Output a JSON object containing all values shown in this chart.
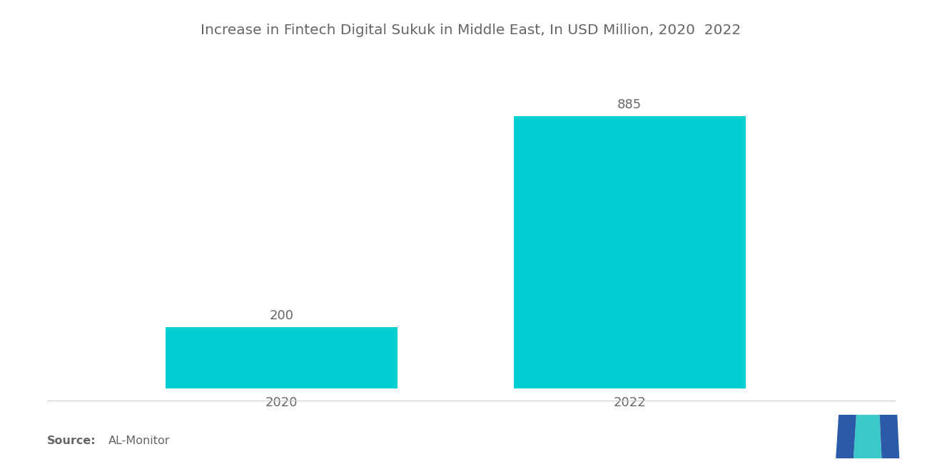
{
  "title": "Increase in Fintech Digital Sukuk in Middle East, In USD Million, 2020  2022",
  "categories": [
    "2020",
    "2022"
  ],
  "values": [
    200,
    885
  ],
  "bar_color": "#00CED1",
  "bar_width": 0.28,
  "value_labels": [
    "200",
    "885"
  ],
  "background_color": "#ffffff",
  "title_fontsize": 14.5,
  "label_fontsize": 13,
  "value_fontsize": 13,
  "source_fontsize": 11.5,
  "ylim": [
    0,
    1000
  ],
  "text_color": "#666666",
  "x_positions": [
    0.26,
    0.68
  ],
  "xlim": [
    0,
    1
  ],
  "blue_color": "#2B5BA8",
  "teal_color": "#3BC8C8",
  "separator_color": "#cccccc"
}
